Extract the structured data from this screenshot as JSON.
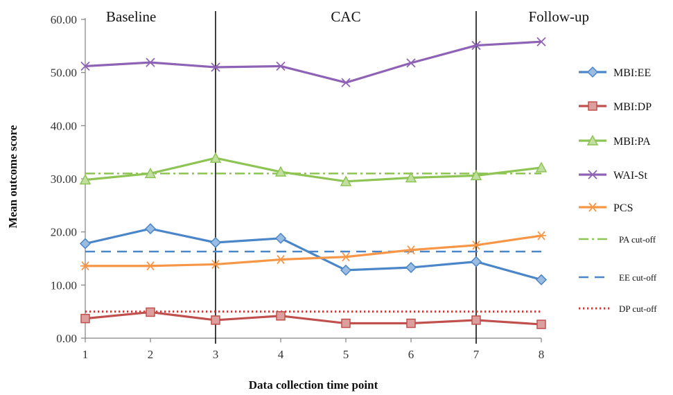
{
  "chart_data": {
    "type": "line",
    "xlabel": "Data collection time point",
    "ylabel": "Mean outcome score",
    "x": [
      1,
      2,
      3,
      4,
      5,
      6,
      7,
      8
    ],
    "x_tick_labels": [
      "1",
      "2",
      "3",
      "4",
      "5",
      "6",
      "7",
      "8"
    ],
    "ylim": [
      0,
      60
    ],
    "y_ticks": [
      0,
      10,
      20,
      30,
      40,
      50,
      60
    ],
    "y_tick_labels": [
      "0.00",
      "10.00",
      "20.00",
      "30.00",
      "40.00",
      "50.00",
      "60.00"
    ],
    "grid": false,
    "legend_position": "right",
    "phases": [
      {
        "label": "Baseline",
        "from": 1,
        "to": 3
      },
      {
        "label": "CAC",
        "from": 3,
        "to": 7
      },
      {
        "label": "Follow-up",
        "from": 7,
        "to": 8
      }
    ],
    "phase_dividers": [
      3,
      7
    ],
    "series": [
      {
        "name": "MBI:EE",
        "color": "#4a86c8",
        "marker": "diamond",
        "values": [
          17.8,
          20.6,
          18.0,
          18.8,
          12.8,
          13.3,
          14.4,
          11.0
        ]
      },
      {
        "name": "MBI:DP",
        "color": "#c0504d",
        "marker": "square",
        "values": [
          3.7,
          4.9,
          3.4,
          4.2,
          2.8,
          2.8,
          3.4,
          2.6
        ]
      },
      {
        "name": "MBI:PA",
        "color": "#8dc454",
        "marker": "triangle",
        "values": [
          29.8,
          31.0,
          33.9,
          31.3,
          29.5,
          30.2,
          30.6,
          32.1
        ]
      },
      {
        "name": "WAI-St",
        "color": "#8e63b5",
        "marker": "x",
        "values": [
          51.2,
          51.9,
          51.0,
          51.2,
          48.1,
          51.8,
          55.1,
          55.8
        ]
      },
      {
        "name": "PCS",
        "color": "#f79646",
        "marker": "star",
        "values": [
          13.6,
          13.6,
          13.9,
          14.8,
          15.3,
          16.6,
          17.5,
          19.3
        ]
      }
    ],
    "reference_lines": [
      {
        "name": "PA cut-off",
        "value": 31,
        "color": "#8dc454",
        "style": "dashdot"
      },
      {
        "name": "EE cut-off",
        "value": 16.3,
        "color": "#4a86c8",
        "style": "dashed"
      },
      {
        "name": "DP cut-off",
        "value": 5,
        "color": "#ff2020",
        "style": "dotted"
      }
    ]
  }
}
